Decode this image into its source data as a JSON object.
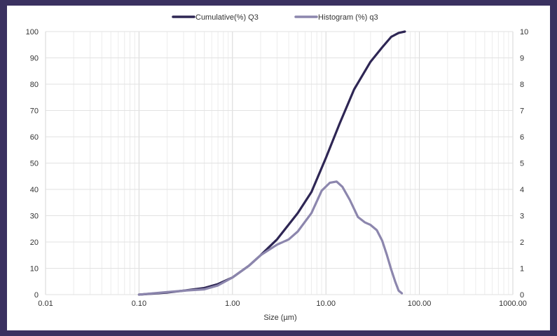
{
  "chart_data": {
    "type": "line",
    "xlabel": "Size (µm)",
    "ylabel": "",
    "y2label": "",
    "xscale": "log",
    "xlim": [
      0.01,
      1000
    ],
    "ylim": [
      0,
      100
    ],
    "y2lim": [
      0,
      10
    ],
    "grid": true,
    "legend": "top-center",
    "x_ticks": [
      "0.01",
      "0.10",
      "1.00",
      "10.00",
      "100.00",
      "1000.00"
    ],
    "y_ticks": [
      "0",
      "10",
      "20",
      "30",
      "40",
      "50",
      "60",
      "70",
      "80",
      "90",
      "100"
    ],
    "y2_ticks": [
      "0",
      "1",
      "2",
      "3",
      "4",
      "5",
      "6",
      "7",
      "8",
      "9",
      "10"
    ],
    "series": [
      {
        "name": "Cumulative(%) Q3",
        "axis": "left",
        "color": "#2e2654",
        "x": [
          0.1,
          0.2,
          0.3,
          0.5,
          0.7,
          1.0,
          1.5,
          2.0,
          3.0,
          5.0,
          7.0,
          10.0,
          14.0,
          20.0,
          30.0,
          40.0,
          50.0,
          60.0,
          70.0
        ],
        "y": [
          0,
          0.8,
          1.5,
          2.5,
          4.0,
          6.5,
          11.0,
          15.0,
          21.0,
          31.0,
          39.0,
          52.0,
          65.0,
          78.0,
          88.5,
          94.0,
          98.0,
          99.5,
          100.0
        ]
      },
      {
        "name": "Histogram (%) q3",
        "axis": "right",
        "color": "#8c86ad",
        "x": [
          0.1,
          0.2,
          0.3,
          0.5,
          0.7,
          1.0,
          1.5,
          2.0,
          3.0,
          4.0,
          5.0,
          7.0,
          9.0,
          11.0,
          13.0,
          15.0,
          18.0,
          22.0,
          26.0,
          30.0,
          35.0,
          40.0,
          45.0,
          50.0,
          55.0,
          60.0,
          65.0
        ],
        "y": [
          0,
          0.1,
          0.15,
          0.2,
          0.35,
          0.65,
          1.1,
          1.5,
          1.9,
          2.1,
          2.4,
          3.1,
          3.95,
          4.25,
          4.3,
          4.1,
          3.6,
          2.95,
          2.75,
          2.65,
          2.45,
          2.05,
          1.5,
          0.95,
          0.5,
          0.15,
          0.05
        ]
      }
    ]
  }
}
